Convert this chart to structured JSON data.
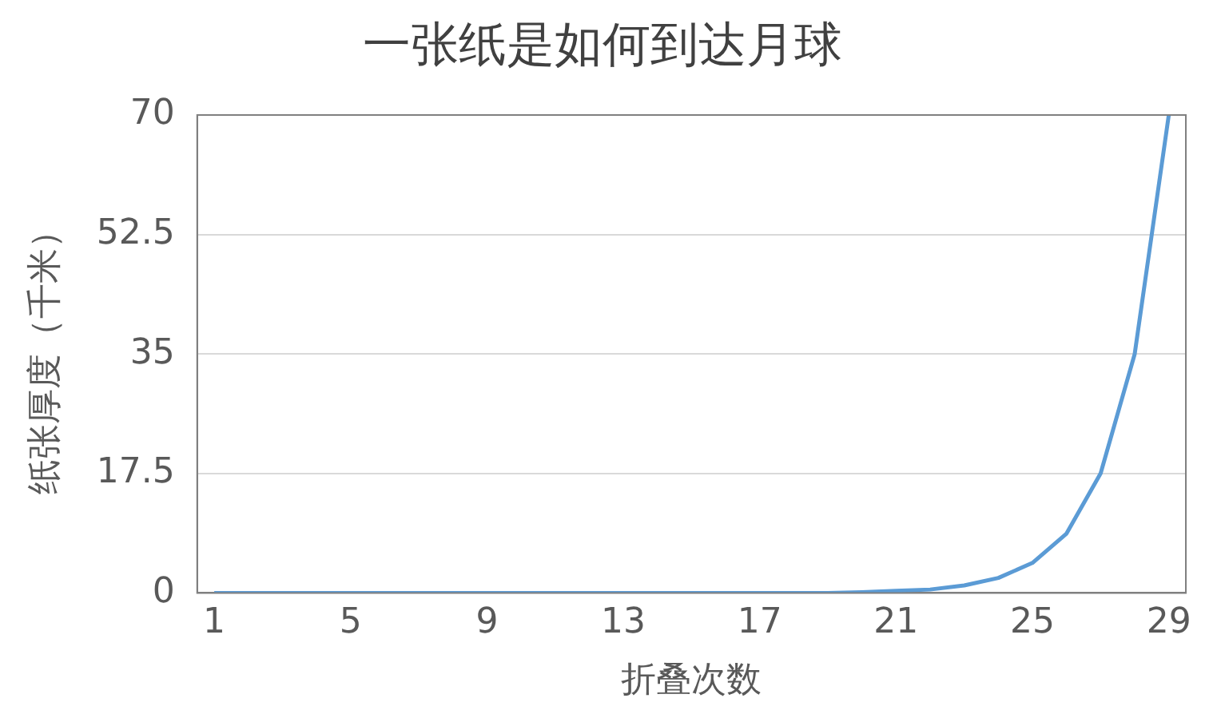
{
  "chart_data": {
    "type": "line",
    "title": "一张纸是如何到达月球",
    "xlabel": "折叠次数",
    "ylabel": "纸张厚度（千米）",
    "categories": [
      "1",
      null,
      null,
      null,
      "5",
      null,
      null,
      null,
      "9",
      null,
      null,
      null,
      "13",
      null,
      null,
      null,
      "17",
      null,
      null,
      null,
      "21",
      null,
      null,
      null,
      "25",
      null,
      null,
      null,
      "29"
    ],
    "series": [
      {
        "color": "#5b9bd5",
        "values": [
          0,
          0,
          0,
          0,
          0,
          0,
          0,
          0,
          0,
          0,
          0,
          0,
          0,
          0,
          0,
          0,
          0,
          0,
          0,
          0.1,
          0.3,
          0.5,
          1.1,
          2.2,
          4.4,
          8.7,
          17.5,
          35,
          70
        ]
      }
    ],
    "ylim": [
      0,
      70
    ],
    "yticks": [
      0,
      17.5,
      35,
      52.5,
      70
    ],
    "grid": "y",
    "marker": "none",
    "line_style": "solid"
  }
}
